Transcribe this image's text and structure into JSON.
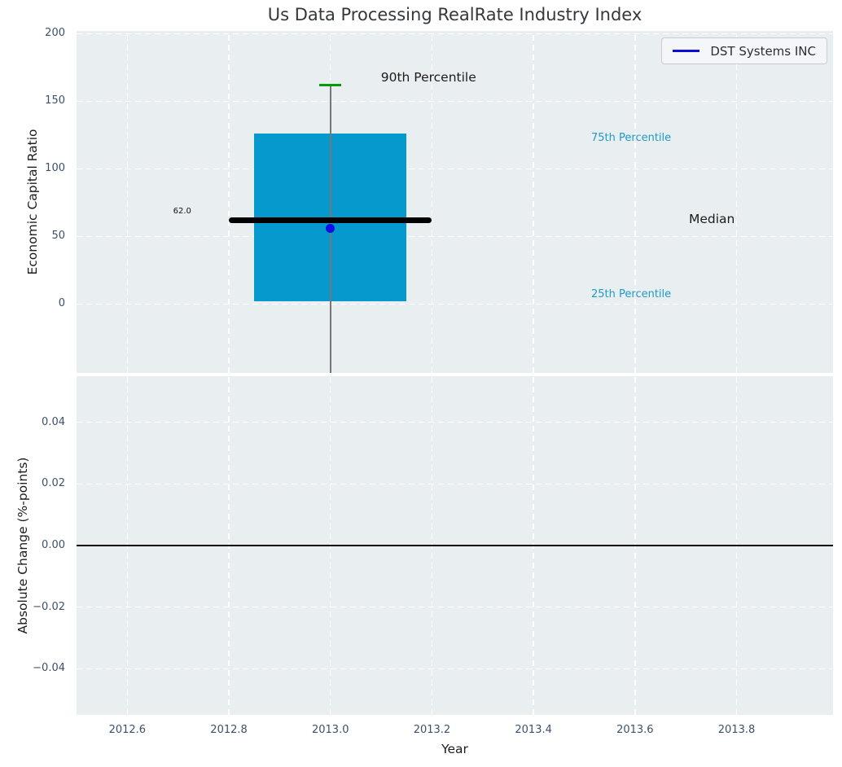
{
  "figure": {
    "title": "Us Data Processing RealRate Industry Index",
    "background": "#ffffff",
    "plot_background": "#e9eef1",
    "grid_color": "#ffffff",
    "tick_label_color": "#3e5069"
  },
  "legend": {
    "label": "DST Systems INC",
    "line_color": "#0d0dd6",
    "position": "upper right"
  },
  "chart_data": [
    {
      "type": "box",
      "title": "Us Data Processing RealRate Industry Index",
      "xlabel": "Year",
      "ylabel": "Economic Capital Ratio",
      "xlim": [
        2012.5,
        2013.99
      ],
      "ylim": [
        -51,
        202
      ],
      "grid": "white dashed, on",
      "xticks": {
        "values": [
          2012.6,
          2012.8,
          2013.0,
          2013.2,
          2013.4,
          2013.6,
          2013.8
        ],
        "labels": [
          "2012.6",
          "2012.8",
          "2013.0",
          "2013.2",
          "2013.4",
          "2013.6",
          "2013.8"
        ]
      },
      "yticks": {
        "values": [
          0,
          50,
          100,
          150,
          200
        ],
        "labels": [
          "0",
          "50",
          "100",
          "150",
          "200"
        ]
      },
      "box": {
        "x": 2013.0,
        "p90": 162,
        "p75": 126,
        "median": 62,
        "p25": 2,
        "whisker_low_clipped_below_axis": true,
        "median_value_label": "62.0",
        "box_halfwidth_years": 0.15,
        "median_halfwidth_years": 0.2,
        "cap_halfwidth_years": 0.022,
        "company_point": {
          "name": "DST Systems INC",
          "x": 2013.0,
          "y": 56
        },
        "colors": {
          "box_fill": "#0599ce",
          "median_line": "#000000",
          "whisker": "#777777",
          "cap": "#089b08",
          "company_point": "#1010e6"
        }
      },
      "annotations": [
        {
          "text": "90th Percentile",
          "color": "#1c1c1c"
        },
        {
          "text": "75th Percentile",
          "color": "#1e9ac9"
        },
        {
          "text": "Median",
          "color": "#1c1c1c"
        },
        {
          "text": "25th Percentile",
          "color": "#1e9ac9"
        }
      ],
      "legend_entries": [
        "DST Systems INC"
      ]
    },
    {
      "type": "line",
      "xlabel": "Year",
      "ylabel": "Absolute Change (%-points)",
      "xlim": [
        2012.5,
        2013.99
      ],
      "ylim": [
        -0.055,
        0.055
      ],
      "grid": "white dashed, on",
      "yticks": {
        "values": [
          0.04,
          0.02,
          0,
          -0.02,
          -0.04
        ],
        "labels": [
          "0.04",
          "0.02",
          "0.00",
          "−0.02",
          "−0.04"
        ]
      },
      "zero_line": {
        "y": 0,
        "color": "#000000"
      },
      "series": []
    }
  ]
}
